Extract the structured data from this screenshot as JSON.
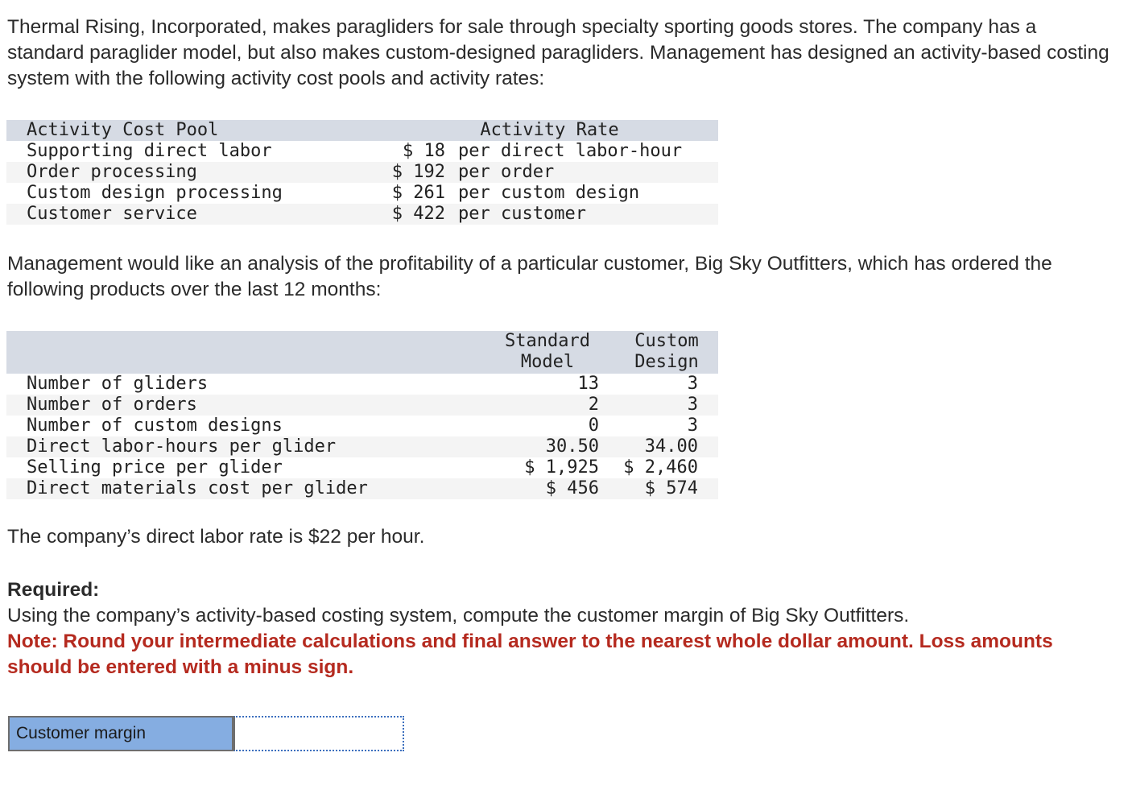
{
  "intro": "Thermal Rising, Incorporated, makes paragliders for sale through specialty sporting goods stores. The company has a standard paraglider model, but also makes custom-designed paragliders. Management has designed an activity-based costing system with the following activity cost pools and activity rates:",
  "activity_table": {
    "header_pool": "Activity Cost Pool",
    "header_rate": "Activity Rate",
    "rows": [
      {
        "pool": "Supporting direct labor",
        "amount": "$ 18",
        "unit": "per direct labor-hour"
      },
      {
        "pool": "Order processing",
        "amount": "$ 192",
        "unit": "per order"
      },
      {
        "pool": "Custom design processing",
        "amount": "$ 261",
        "unit": "per custom design"
      },
      {
        "pool": "Customer service",
        "amount": "$ 422",
        "unit": "per customer"
      }
    ]
  },
  "analysis": "Management would like an analysis of the profitability of a particular customer, Big Sky Outfitters, which has ordered the following products over the last 12 months:",
  "product_table": {
    "header_standard": "Standard\nModel",
    "header_custom": "Custom\nDesign",
    "rows": [
      {
        "label": "Number of gliders",
        "standard": "13",
        "custom": "3"
      },
      {
        "label": "Number of orders",
        "standard": "2",
        "custom": "3"
      },
      {
        "label": "Number of custom designs",
        "standard": "0",
        "custom": "3"
      },
      {
        "label": "Direct labor-hours per glider",
        "standard": "30.50",
        "custom": "34.00"
      },
      {
        "label": "Selling price per glider",
        "standard": "$ 1,925",
        "custom": "$ 2,460"
      },
      {
        "label": "Direct materials cost per glider",
        "standard": "$ 456",
        "custom": "$ 574"
      }
    ]
  },
  "labor_rate": "The company’s direct labor rate is $22 per hour.",
  "required": {
    "heading": "Required:",
    "text": "Using the company’s activity-based costing system, compute the customer margin of Big Sky Outfitters.",
    "note": "Note: Round your intermediate calculations and final answer to the nearest whole dollar amount. Loss amounts should be entered with a minus sign."
  },
  "answer": {
    "label": "Customer margin",
    "value": ""
  }
}
